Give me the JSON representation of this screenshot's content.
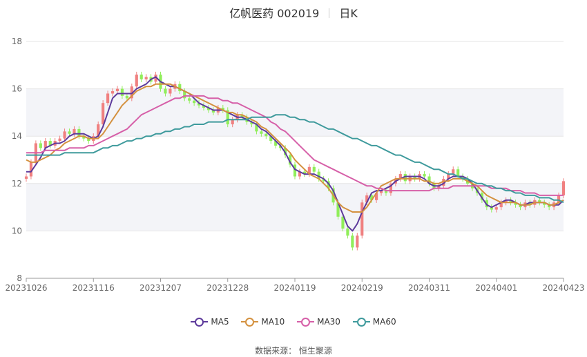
{
  "title": {
    "name": "亿帆医药 002019",
    "period": "日K"
  },
  "source": "数据来源： 恒生聚源",
  "colors": {
    "up": "#f08080",
    "down": "#90ee5a",
    "ma5": "#5d3a9b",
    "ma10": "#d4913f",
    "ma30": "#d65fa8",
    "ma60": "#3e9a9c",
    "grid": "#e6e6e6"
  },
  "chart_data": {
    "type": "candlestick",
    "ylim": [
      8,
      18
    ],
    "yticks": [
      8,
      10,
      12,
      14,
      16,
      18
    ],
    "x_tick_labels": [
      {
        "date": "20231026",
        "index": 0
      },
      {
        "date": "20231116",
        "index": 14
      },
      {
        "date": "20231207",
        "index": 28
      },
      {
        "date": "20231228",
        "index": 42
      },
      {
        "date": "20240119",
        "index": 56
      },
      {
        "date": "20240219",
        "index": 70
      },
      {
        "date": "20240311",
        "index": 84
      },
      {
        "date": "20240401",
        "index": 98
      },
      {
        "date": "20240423",
        "index": 112
      }
    ],
    "closes": [
      12.3,
      12.9,
      13.7,
      13.5,
      13.8,
      13.6,
      13.8,
      13.9,
      14.2,
      14.1,
      14.3,
      14.0,
      13.9,
      13.8,
      14.0,
      14.5,
      15.4,
      15.8,
      15.9,
      16.0,
      15.7,
      15.6,
      16.1,
      16.6,
      16.4,
      16.5,
      16.3,
      16.6,
      16.0,
      15.8,
      16.0,
      16.2,
      15.9,
      15.6,
      15.5,
      15.4,
      15.3,
      15.2,
      15.1,
      15.0,
      15.2,
      15.1,
      14.5,
      14.7,
      14.9,
      14.8,
      14.6,
      14.5,
      14.2,
      14.1,
      14.0,
      13.8,
      13.6,
      13.5,
      13.2,
      12.8,
      12.3,
      12.5,
      12.4,
      12.7,
      12.5,
      12.2,
      12.1,
      11.8,
      11.2,
      10.6,
      10.1,
      9.8,
      9.3,
      9.8,
      11.2,
      11.5,
      11.3,
      11.6,
      11.7,
      11.6,
      12.0,
      12.2,
      12.4,
      12.1,
      12.3,
      12.2,
      12.4,
      12.3,
      12.0,
      11.8,
      11.9,
      12.2,
      12.4,
      12.6,
      12.3,
      12.2,
      12.0,
      11.8,
      11.6,
      11.3,
      11.0,
      10.9,
      11.0,
      11.2,
      11.3,
      11.2,
      11.1,
      11.0,
      11.2,
      11.1,
      11.3,
      11.2,
      11.1,
      11.0,
      11.2,
      11.5,
      12.1
    ],
    "series": [
      {
        "name": "MA5",
        "values": [
          12.5,
          12.5,
          12.8,
          13.1,
          13.5,
          13.6,
          13.7,
          13.7,
          13.8,
          14.0,
          14.1,
          14.1,
          14.1,
          14.0,
          13.9,
          14.0,
          14.4,
          15.0,
          15.6,
          15.8,
          15.8,
          15.8,
          15.8,
          16.0,
          16.1,
          16.2,
          16.4,
          16.5,
          16.3,
          16.2,
          16.1,
          16.1,
          16.0,
          15.9,
          15.8,
          15.6,
          15.4,
          15.3,
          15.2,
          15.1,
          15.1,
          15.1,
          15.0,
          14.9,
          14.8,
          14.8,
          14.7,
          14.6,
          14.5,
          14.3,
          14.2,
          14.0,
          13.8,
          13.6,
          13.3,
          12.9,
          12.6,
          12.5,
          12.4,
          12.4,
          12.4,
          12.3,
          12.2,
          12.0,
          11.7,
          11.2,
          10.7,
          10.2,
          10.0,
          10.3,
          10.8,
          11.2,
          11.6,
          11.7,
          11.7,
          11.8,
          11.9,
          12.1,
          12.2,
          12.3,
          12.3,
          12.3,
          12.3,
          12.2,
          12.0,
          11.9,
          11.9,
          12.0,
          12.2,
          12.3,
          12.3,
          12.3,
          12.2,
          12.0,
          11.7,
          11.4,
          11.1,
          11.0,
          11.1,
          11.2,
          11.3,
          11.3,
          11.2,
          11.1,
          11.1,
          11.2,
          11.2,
          11.2,
          11.2,
          11.1,
          11.1,
          11.1,
          11.3
        ]
      },
      {
        "name": "MA10",
        "values": [
          13.0,
          12.9,
          12.9,
          13.0,
          13.1,
          13.2,
          13.4,
          13.5,
          13.7,
          13.8,
          13.9,
          14.0,
          14.0,
          13.9,
          13.9,
          13.9,
          14.1,
          14.4,
          14.7,
          15.0,
          15.3,
          15.5,
          15.7,
          15.9,
          16.0,
          16.1,
          16.1,
          16.2,
          16.2,
          16.2,
          16.2,
          16.1,
          16.0,
          15.9,
          15.8,
          15.7,
          15.6,
          15.5,
          15.4,
          15.3,
          15.2,
          15.1,
          15.0,
          15.0,
          14.9,
          14.9,
          14.8,
          14.7,
          14.6,
          14.4,
          14.3,
          14.1,
          13.9,
          13.7,
          13.5,
          13.3,
          13.0,
          12.8,
          12.6,
          12.4,
          12.3,
          12.2,
          12.0,
          11.8,
          11.5,
          11.2,
          11.0,
          10.9,
          10.8,
          10.8,
          10.8,
          11.0,
          11.3,
          11.6,
          11.9,
          12.0,
          12.1,
          12.2,
          12.2,
          12.2,
          12.2,
          12.2,
          12.2,
          12.1,
          12.1,
          12.0,
          12.0,
          12.1,
          12.1,
          12.2,
          12.2,
          12.2,
          12.1,
          12.0,
          11.9,
          11.7,
          11.5,
          11.4,
          11.3,
          11.2,
          11.2,
          11.2,
          11.2,
          11.1,
          11.1,
          11.1,
          11.2,
          11.2,
          11.2,
          11.1,
          11.1,
          11.2,
          11.3
        ]
      },
      {
        "name": "MA30",
        "values": [
          13.3,
          13.3,
          13.3,
          13.3,
          13.4,
          13.4,
          13.4,
          13.4,
          13.4,
          13.5,
          13.5,
          13.5,
          13.5,
          13.6,
          13.6,
          13.7,
          13.8,
          13.9,
          14.0,
          14.1,
          14.2,
          14.3,
          14.5,
          14.7,
          14.9,
          15.0,
          15.1,
          15.2,
          15.3,
          15.4,
          15.5,
          15.6,
          15.6,
          15.7,
          15.7,
          15.7,
          15.7,
          15.7,
          15.6,
          15.6,
          15.6,
          15.5,
          15.5,
          15.4,
          15.4,
          15.3,
          15.2,
          15.1,
          15.0,
          14.9,
          14.8,
          14.6,
          14.5,
          14.3,
          14.2,
          14.0,
          13.8,
          13.6,
          13.4,
          13.2,
          13.0,
          12.9,
          12.8,
          12.7,
          12.6,
          12.5,
          12.4,
          12.3,
          12.2,
          12.1,
          12.0,
          11.9,
          11.9,
          11.8,
          11.8,
          11.7,
          11.7,
          11.7,
          11.7,
          11.7,
          11.7,
          11.7,
          11.7,
          11.7,
          11.7,
          11.8,
          11.8,
          11.8,
          11.8,
          11.9,
          11.9,
          11.9,
          11.9,
          11.9,
          11.9,
          11.9,
          11.9,
          11.8,
          11.8,
          11.8,
          11.8,
          11.7,
          11.7,
          11.7,
          11.6,
          11.6,
          11.6,
          11.5,
          11.5,
          11.5,
          11.5,
          11.5,
          11.5
        ]
      },
      {
        "name": "MA60",
        "values": [
          13.2,
          13.2,
          13.2,
          13.2,
          13.2,
          13.2,
          13.2,
          13.2,
          13.3,
          13.3,
          13.3,
          13.3,
          13.3,
          13.3,
          13.3,
          13.4,
          13.5,
          13.5,
          13.6,
          13.6,
          13.7,
          13.8,
          13.8,
          13.9,
          13.9,
          14.0,
          14.0,
          14.1,
          14.1,
          14.2,
          14.2,
          14.3,
          14.3,
          14.4,
          14.4,
          14.5,
          14.5,
          14.5,
          14.6,
          14.6,
          14.6,
          14.6,
          14.7,
          14.7,
          14.7,
          14.7,
          14.7,
          14.8,
          14.8,
          14.8,
          14.8,
          14.8,
          14.9,
          14.9,
          14.9,
          14.8,
          14.8,
          14.7,
          14.7,
          14.6,
          14.6,
          14.5,
          14.4,
          14.3,
          14.3,
          14.2,
          14.1,
          14.0,
          13.9,
          13.9,
          13.8,
          13.7,
          13.6,
          13.6,
          13.5,
          13.4,
          13.3,
          13.2,
          13.2,
          13.1,
          13.0,
          12.9,
          12.9,
          12.8,
          12.7,
          12.6,
          12.6,
          12.5,
          12.4,
          12.4,
          12.3,
          12.2,
          12.2,
          12.1,
          12.0,
          12.0,
          11.9,
          11.9,
          11.8,
          11.8,
          11.7,
          11.7,
          11.6,
          11.6,
          11.5,
          11.5,
          11.5,
          11.4,
          11.4,
          11.4,
          11.3,
          11.3,
          11.2
        ]
      }
    ],
    "legend": [
      "MA5",
      "MA10",
      "MA30",
      "MA60"
    ],
    "legend_position": "bottom",
    "grid": true
  }
}
